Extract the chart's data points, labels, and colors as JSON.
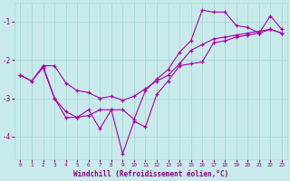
{
  "background_color": "#c8eaea",
  "grid_color": "#a8d8d8",
  "line_color": "#aa00aa",
  "marker": "+",
  "xlabel": "Windchill (Refroidissement éolien,°C)",
  "xlabel_color": "#880088",
  "ylabel_color": "#880088",
  "yticks": [
    -4,
    -3,
    -2,
    -1
  ],
  "xticks": [
    0,
    1,
    2,
    3,
    4,
    5,
    6,
    7,
    8,
    9,
    10,
    11,
    12,
    13,
    14,
    15,
    16,
    17,
    18,
    19,
    20,
    21,
    22,
    23
  ],
  "xlim": [
    -0.5,
    23.5
  ],
  "ylim": [
    -4.6,
    -0.5
  ],
  "line1_x": [
    0,
    1,
    2,
    3,
    4,
    5,
    6,
    7,
    8,
    9,
    10,
    11,
    12,
    13,
    14,
    15,
    16,
    17,
    18,
    19,
    20,
    21,
    22,
    23
  ],
  "line1_y": [
    -2.4,
    -2.55,
    -2.2,
    -3.0,
    -3.35,
    -3.5,
    -3.3,
    -3.8,
    -3.3,
    -4.45,
    -3.6,
    -3.75,
    -2.9,
    -2.55,
    -2.15,
    -2.1,
    -2.05,
    -1.55,
    -1.5,
    -1.4,
    -1.35,
    -1.3,
    -1.2,
    -1.3
  ],
  "line2_x": [
    0,
    1,
    2,
    3,
    4,
    5,
    6,
    7,
    8,
    9,
    10,
    11,
    12,
    13,
    14,
    15,
    16,
    17,
    18,
    19,
    20,
    21,
    22,
    23
  ],
  "line2_y": [
    -2.4,
    -2.55,
    -2.15,
    -2.15,
    -2.6,
    -2.8,
    -2.85,
    -3.0,
    -2.95,
    -3.05,
    -2.95,
    -2.75,
    -2.55,
    -2.4,
    -2.1,
    -1.75,
    -1.6,
    -1.45,
    -1.4,
    -1.35,
    -1.3,
    -1.25,
    -1.2,
    -1.3
  ],
  "line3_x": [
    2,
    3,
    4,
    5,
    6,
    7,
    8,
    9,
    10,
    11,
    12,
    13,
    14,
    15,
    16,
    17,
    18,
    19,
    20,
    21,
    22,
    23
  ],
  "line3_y": [
    -2.15,
    -3.0,
    -3.5,
    -3.5,
    -3.45,
    -3.3,
    -3.3,
    -3.3,
    -3.55,
    -2.8,
    -2.5,
    -2.25,
    -1.8,
    -1.5,
    -0.7,
    -0.75,
    -0.75,
    -1.1,
    -1.15,
    -1.3,
    -0.85,
    -1.2
  ]
}
